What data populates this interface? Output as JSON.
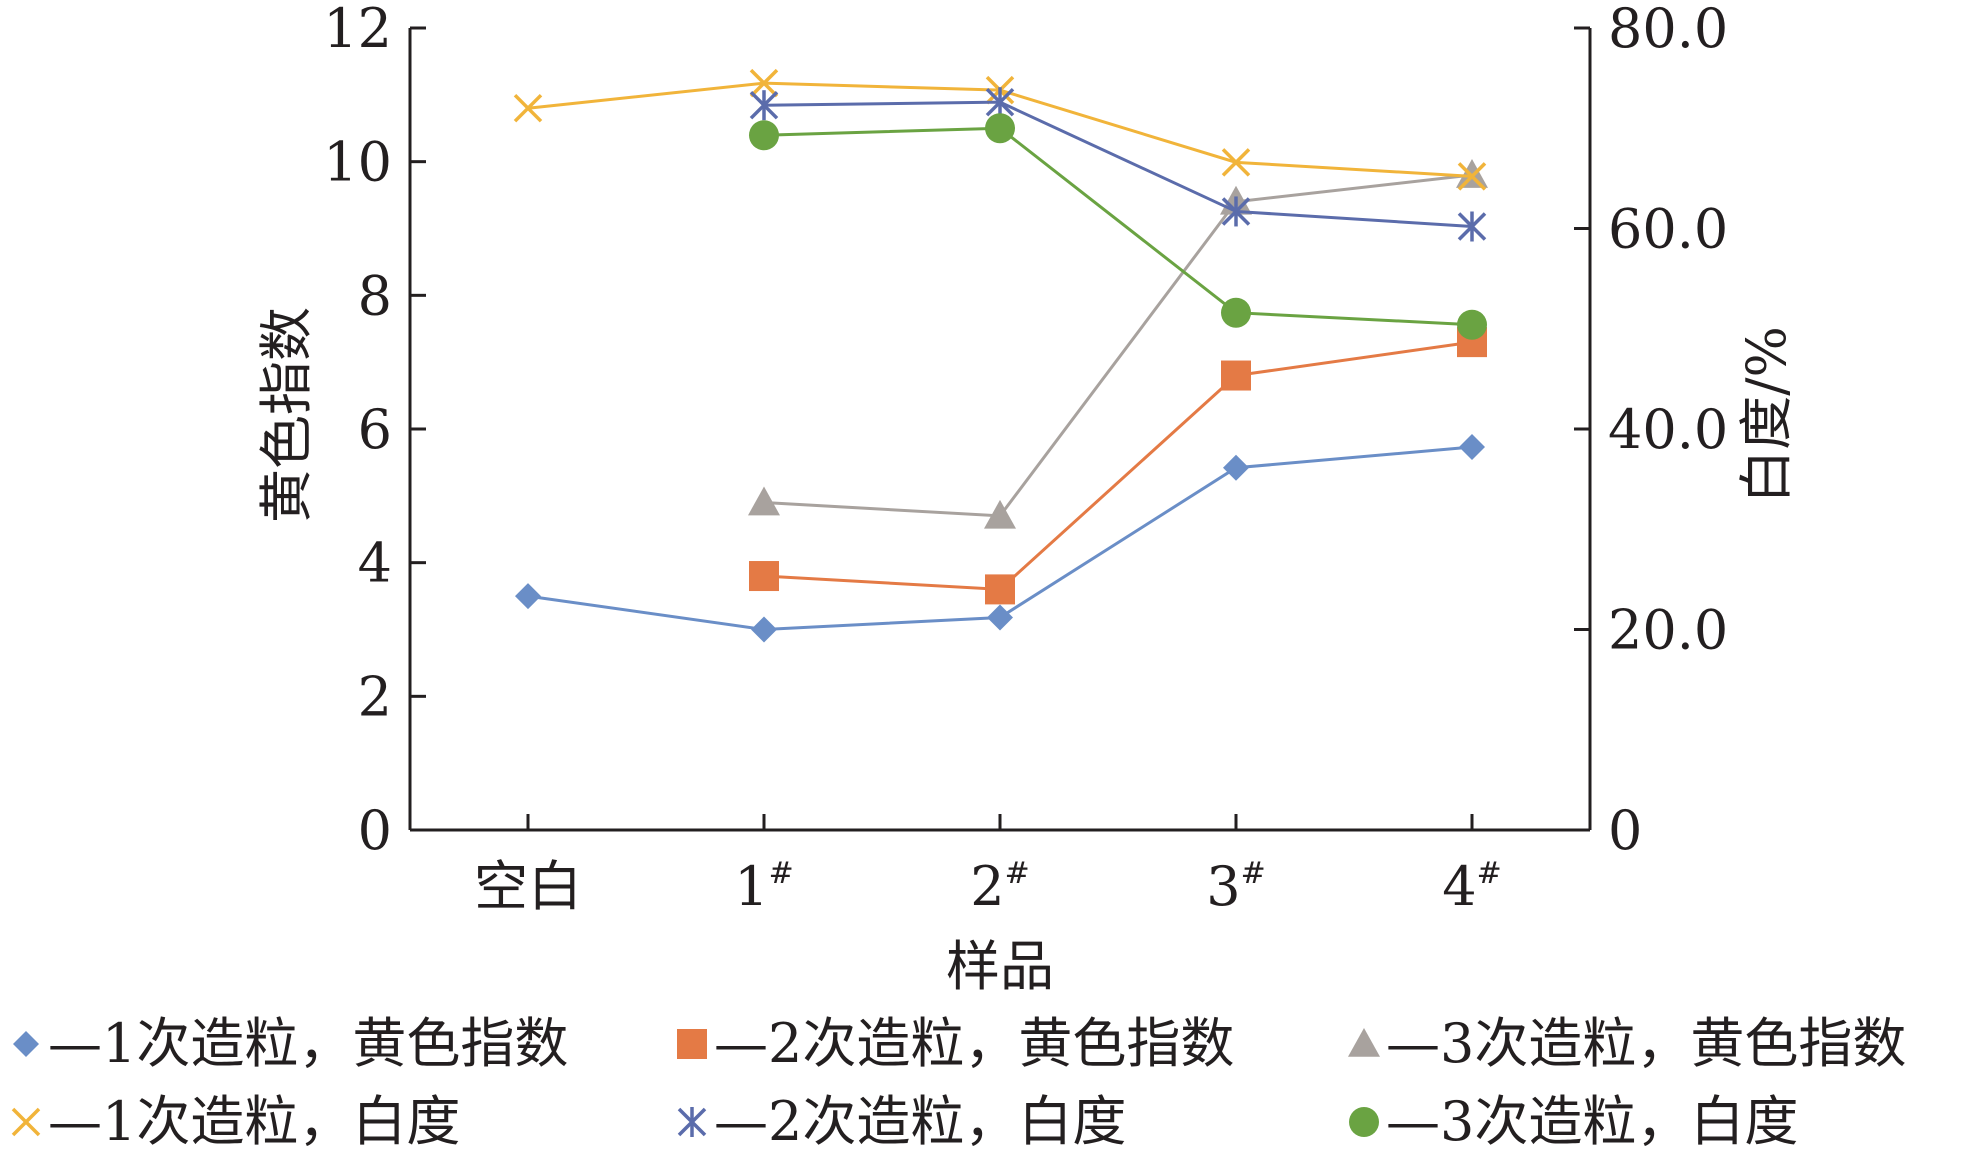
{
  "chart_data": {
    "type": "line",
    "categories": [
      "空白",
      "1",
      "2",
      "3",
      "4"
    ],
    "category_suffix": "#",
    "xlabel": "样品",
    "ylabel_left": "黄色指数",
    "ylabel_right": "白度/%",
    "ylim_left": [
      0,
      12
    ],
    "ylim_right": [
      0,
      80
    ],
    "yticks_left": [
      "0",
      "2",
      "4",
      "6",
      "8",
      "10",
      "12"
    ],
    "yticks_right": [
      "0",
      "20.0",
      "40.0",
      "60.0",
      "80.0"
    ],
    "grid": false,
    "legend_position": "bottom",
    "series": [
      {
        "name": "1次造粒，黄色指数",
        "axis": "left",
        "marker": "diamond",
        "color": "#6a8ec7",
        "values": [
          3.5,
          3.0,
          3.18,
          5.42,
          5.73
        ]
      },
      {
        "name": "2次造粒，黄色指数",
        "axis": "left",
        "marker": "square",
        "color": "#e47a45",
        "values": [
          null,
          3.8,
          3.6,
          6.8,
          7.3
        ]
      },
      {
        "name": "3次造粒，黄色指数",
        "axis": "left",
        "marker": "triangle",
        "color": "#a8a29e",
        "values": [
          null,
          4.9,
          4.7,
          9.4,
          9.8
        ]
      },
      {
        "name": "1次造粒，白度",
        "axis": "right",
        "marker": "x",
        "color": "#f1b43a",
        "values": [
          72.0,
          74.5,
          73.8,
          66.6,
          65.2
        ]
      },
      {
        "name": "2次造粒，白度",
        "axis": "right",
        "marker": "asterisk",
        "color": "#5b6cab",
        "values": [
          null,
          72.3,
          72.6,
          61.7,
          60.2
        ]
      },
      {
        "name": "3次造粒，白度",
        "axis": "right",
        "marker": "circle",
        "color": "#6aa342",
        "values": [
          null,
          69.3,
          70.0,
          51.6,
          50.4
        ]
      }
    ]
  }
}
